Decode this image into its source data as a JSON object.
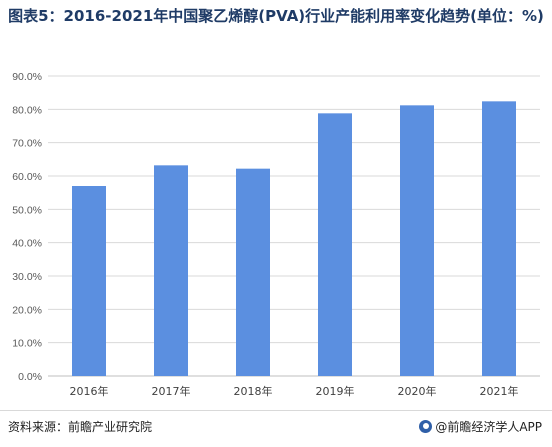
{
  "title": "图表5：2016-2021年中国聚乙烯醇(PVA)行业产能利用率变化趋势(单位：%)",
  "footer": {
    "source": "资料来源：前瞻产业研究院",
    "brand": "@前瞻经济学人APP"
  },
  "colors": {
    "bar": "#5b8fe0",
    "grid": "#d9d9d9",
    "axis": "#bfbfbf"
  },
  "chart_data": {
    "type": "bar",
    "title": "图表5：2016-2021年中国聚乙烯醇(PVA)行业产能利用率变化趋势(单位：%)",
    "categories": [
      "2016年",
      "2017年",
      "2018年",
      "2019年",
      "2020年",
      "2021年"
    ],
    "values": [
      57.0,
      63.2,
      62.2,
      78.8,
      81.2,
      82.4
    ],
    "ylim": [
      0,
      90
    ],
    "yticks": [
      0,
      10,
      20,
      30,
      40,
      50,
      60,
      70,
      80,
      90
    ],
    "ytick_labels": [
      "0.0%",
      "10.0%",
      "20.0%",
      "30.0%",
      "40.0%",
      "50.0%",
      "60.0%",
      "70.0%",
      "80.0%",
      "90.0%"
    ],
    "grid": true,
    "legend": "none"
  }
}
